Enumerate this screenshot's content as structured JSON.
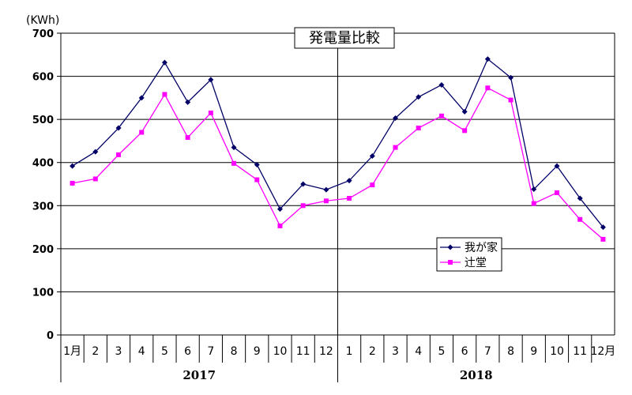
{
  "chart_data": {
    "type": "line",
    "title": "発電量比較",
    "ylabel": "(KWh)",
    "ylim": [
      0,
      700
    ],
    "yticks": [
      0,
      100,
      200,
      300,
      400,
      500,
      600,
      700
    ],
    "grid": true,
    "legend_position": "right",
    "groups": [
      {
        "label": "2017",
        "categories": [
          "1月",
          "2",
          "3",
          "4",
          "5",
          "6",
          "7",
          "8",
          "9",
          "10",
          "11",
          "12"
        ]
      },
      {
        "label": "2018",
        "categories": [
          "1",
          "2",
          "3",
          "4",
          "5",
          "6",
          "7",
          "8",
          "9",
          "10",
          "11",
          "12月"
        ]
      }
    ],
    "series": [
      {
        "name": "我が家",
        "color": "#000066",
        "marker": "diamond",
        "values": [
          392,
          425,
          480,
          550,
          632,
          540,
          592,
          435,
          395,
          292,
          350,
          337,
          358,
          415,
          503,
          552,
          580,
          518,
          640,
          597,
          338,
          392,
          317,
          250
        ]
      },
      {
        "name": "辻堂",
        "color": "#ff00ff",
        "marker": "square",
        "values": [
          352,
          362,
          418,
          470,
          558,
          458,
          515,
          398,
          360,
          253,
          300,
          311,
          317,
          348,
          435,
          480,
          508,
          474,
          573,
          545,
          305,
          330,
          268,
          222
        ]
      }
    ]
  }
}
